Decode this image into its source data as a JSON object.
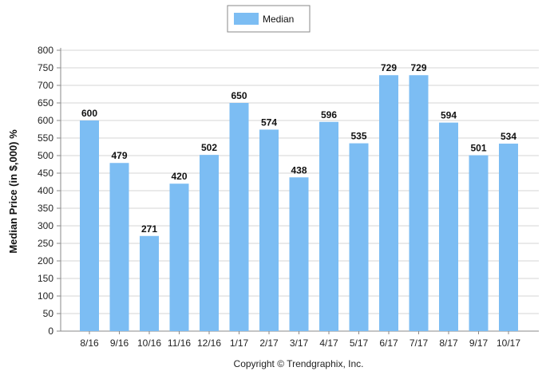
{
  "chart_data": {
    "type": "bar",
    "categories": [
      "8/16",
      "9/16",
      "10/16",
      "11/16",
      "12/16",
      "1/17",
      "2/17",
      "3/17",
      "4/17",
      "5/17",
      "6/17",
      "7/17",
      "8/17",
      "9/17",
      "10/17"
    ],
    "series": [
      {
        "name": "Median",
        "values": [
          600,
          479,
          271,
          420,
          502,
          650,
          574,
          438,
          596,
          535,
          729,
          729,
          594,
          501,
          534
        ]
      }
    ],
    "ylabel": "Median Price (in $,000) %",
    "xlabel": "",
    "ylim": [
      0,
      800
    ],
    "yticks": [
      0,
      50,
      100,
      150,
      200,
      250,
      300,
      350,
      400,
      450,
      500,
      550,
      600,
      650,
      700,
      750,
      800
    ],
    "grid": true,
    "legend_position": "top-center",
    "bar_color": "#7cbdf3",
    "footer": "Copyright © Trendgraphix, Inc."
  }
}
